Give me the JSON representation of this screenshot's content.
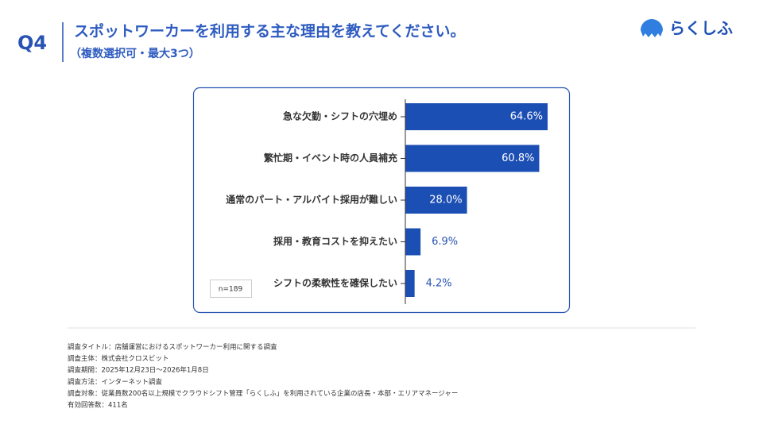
{
  "header": {
    "question": "Q4",
    "title": "スポットワーカーを利用する主な理由を教えてください。",
    "subtitle": "（複数選択可・最大3つ）",
    "logo": "らくしふ"
  },
  "chart_data": {
    "type": "bar",
    "orientation": "horizontal",
    "color": "#1c4fb4",
    "categories": [
      "急な欠勤・シフトの穴埋め",
      "繁忙期・イベント時の人員補充",
      "通常のパート・アルバイト採用が難しい",
      "採用・教育コストを抑えたい",
      "シフトの柔軟性を確保したい"
    ],
    "values": [
      64.6,
      60.8,
      28.0,
      6.9,
      4.2
    ],
    "value_labels": [
      "64.6%",
      "60.8%",
      "28.0%",
      "6.9%",
      "4.2%"
    ],
    "note": "n=189"
  },
  "footer": {
    "lines": [
      "調査タイトル：店舗運営におけるスポットワーカー利用に関する調査",
      "調査主体：株式会社クロスビット",
      "調査期間：2025年12月23日〜2026年1月8日",
      "調査方法：インターネット調査",
      "調査対象：従業員数200名以上規模でクラウドシフト管理「らくしふ」を利用されている企業の店長・本部・エリアマネージャー",
      "有効回答数：411名"
    ]
  }
}
